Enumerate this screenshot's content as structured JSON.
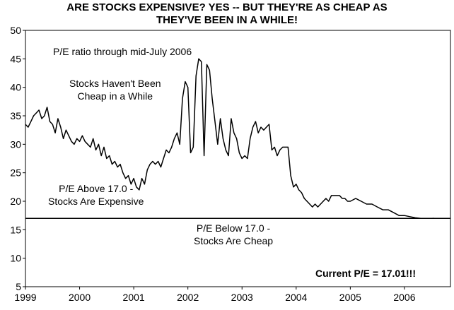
{
  "chart_data": {
    "type": "line",
    "title_line1": "ARE STOCKS EXPENSIVE? YES -- BUT THEY'RE AS CHEAP AS",
    "title_line2": "THEY'VE BEEN IN A WHILE!",
    "xlabel": "",
    "ylabel": "",
    "xlim": [
      1999,
      2006.85
    ],
    "ylim": [
      5,
      50
    ],
    "y_ticks": [
      5,
      10,
      15,
      20,
      25,
      30,
      35,
      40,
      45,
      50
    ],
    "x_ticks": [
      1999,
      2000,
      2001,
      2002,
      2003,
      2004,
      2005,
      2006
    ],
    "grid": false,
    "reference_line": {
      "y": 17.0
    },
    "annotations": {
      "series_label": "P/E ratio through mid-July 2006",
      "not_cheap_line1": "Stocks Haven't Been",
      "not_cheap_line2": "Cheap in a While",
      "above_line1": "P/E Above 17.0 -",
      "above_line2": "Stocks Are Expensive",
      "below_line1": "P/E Below 17.0 -",
      "below_line2": "Stocks Are Cheap",
      "current": "Current P/E = 17.01!!!"
    },
    "series": [
      {
        "x": [
          1999.0,
          1999.05,
          1999.1,
          1999.15,
          1999.2,
          1999.25,
          1999.3,
          1999.35,
          1999.4,
          1999.45,
          1999.5,
          1999.55,
          1999.6,
          1999.65,
          1999.7,
          1999.75,
          1999.8,
          1999.85,
          1999.9,
          1999.95,
          2000.0,
          2000.05,
          2000.1,
          2000.15,
          2000.2,
          2000.25,
          2000.3,
          2000.35,
          2000.4,
          2000.45,
          2000.5,
          2000.55,
          2000.6,
          2000.65,
          2000.7,
          2000.75,
          2000.8,
          2000.85,
          2000.9,
          2000.95,
          2001.0,
          2001.05,
          2001.1,
          2001.15,
          2001.2,
          2001.25,
          2001.3,
          2001.35,
          2001.4,
          2001.45,
          2001.5,
          2001.55,
          2001.6,
          2001.65,
          2001.7,
          2001.75,
          2001.8,
          2001.85,
          2001.9,
          2001.95,
          2002.0,
          2002.05,
          2002.1,
          2002.15,
          2002.2,
          2002.25,
          2002.3,
          2002.35,
          2002.4,
          2002.45,
          2002.5,
          2002.55,
          2002.6,
          2002.65,
          2002.7,
          2002.75,
          2002.8,
          2002.85,
          2002.9,
          2002.95,
          2003.0,
          2003.05,
          2003.1,
          2003.15,
          2003.2,
          2003.25,
          2003.3,
          2003.35,
          2003.4,
          2003.45,
          2003.5,
          2003.55,
          2003.6,
          2003.65,
          2003.7,
          2003.75,
          2003.8,
          2003.85,
          2003.9,
          2003.95,
          2004.0,
          2004.05,
          2004.1,
          2004.15,
          2004.2,
          2004.25,
          2004.3,
          2004.35,
          2004.4,
          2004.45,
          2004.5,
          2004.55,
          2004.6,
          2004.65,
          2004.7,
          2004.75,
          2004.8,
          2004.85,
          2004.9,
          2004.95,
          2005.0,
          2005.1,
          2005.2,
          2005.3,
          2005.4,
          2005.5,
          2005.6,
          2005.7,
          2005.8,
          2005.9,
          2006.0,
          2006.1,
          2006.2,
          2006.3,
          2006.4,
          2006.5,
          2006.55
        ],
        "values": [
          33.5,
          33.0,
          34.0,
          35.0,
          35.5,
          36.0,
          34.5,
          35.0,
          36.5,
          34.0,
          33.5,
          32.0,
          34.5,
          33.0,
          31.0,
          32.5,
          31.5,
          30.5,
          30.0,
          31.0,
          30.5,
          31.5,
          30.5,
          30.0,
          29.5,
          31.0,
          29.0,
          30.0,
          28.0,
          29.5,
          27.5,
          28.0,
          26.5,
          27.0,
          26.0,
          26.5,
          25.0,
          24.0,
          24.5,
          23.0,
          24.0,
          22.5,
          22.0,
          24.0,
          23.0,
          25.5,
          26.5,
          27.0,
          26.5,
          27.0,
          26.0,
          27.5,
          29.0,
          28.5,
          29.5,
          31.0,
          32.0,
          30.0,
          38.0,
          41.0,
          40.0,
          28.5,
          29.5,
          42.0,
          45.0,
          44.5,
          28.0,
          44.0,
          43.0,
          38.0,
          34.0,
          30.0,
          34.5,
          31.0,
          29.0,
          28.0,
          34.5,
          32.0,
          31.0,
          28.5,
          27.5,
          28.0,
          27.5,
          31.0,
          33.0,
          34.0,
          32.0,
          33.0,
          32.5,
          33.0,
          33.5,
          29.0,
          29.5,
          28.0,
          29.0,
          29.5,
          29.5,
          29.5,
          24.5,
          22.5,
          23.0,
          22.0,
          21.5,
          20.5,
          20.0,
          19.5,
          19.0,
          19.5,
          19.0,
          19.5,
          20.0,
          20.5,
          20.0,
          21.0,
          21.0,
          21.0,
          21.0,
          20.5,
          20.5,
          20.0,
          20.0,
          20.5,
          20.0,
          19.5,
          19.5,
          19.0,
          18.5,
          18.5,
          18.0,
          17.5,
          17.5,
          17.3,
          17.1,
          17.0,
          17.0,
          17.0,
          17.01
        ]
      }
    ]
  }
}
